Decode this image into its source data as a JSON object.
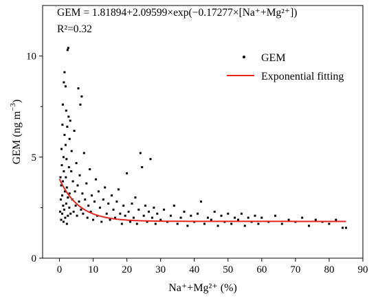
{
  "chart_data": {
    "type": "scatter",
    "xlabel": "Na⁺+Mg²⁺ (%)",
    "ylabel_main": "GEM (ng m",
    "ylabel_exp": "−3",
    "ylabel_close": ")",
    "xlim": [
      -5,
      90
    ],
    "ylim": [
      0,
      12.5
    ],
    "x_ticks": [
      0,
      10,
      20,
      30,
      40,
      50,
      60,
      70,
      80,
      90
    ],
    "y_ticks": [
      0,
      5,
      10
    ],
    "x_tick_labels": [
      "0",
      "10",
      "20",
      "30",
      "40",
      "50",
      "60",
      "70",
      "80",
      "90"
    ],
    "y_tick_labels": [
      "0",
      "5",
      "10"
    ],
    "grid": false,
    "legend_position": "top-right",
    "equation": "GEM = 1.81894+2.09599×exp(−0.17277×[Na⁺+Mg²⁺])",
    "r_squared": "R²=0.32",
    "series": [
      {
        "name": "GEM",
        "kind": "scatter",
        "color": "#000000",
        "points": [
          [
            0.2,
            2.3
          ],
          [
            0.3,
            4.0
          ],
          [
            0.4,
            2.9
          ],
          [
            0.5,
            3.6
          ],
          [
            0.5,
            1.9
          ],
          [
            0.6,
            5.4
          ],
          [
            0.7,
            4.6
          ],
          [
            0.8,
            3.1
          ],
          [
            0.8,
            2.2
          ],
          [
            0.9,
            6.6
          ],
          [
            1.0,
            7.6
          ],
          [
            1.0,
            3.8
          ],
          [
            1.1,
            2.6
          ],
          [
            1.2,
            5.0
          ],
          [
            1.2,
            1.8
          ],
          [
            1.3,
            8.7
          ],
          [
            1.3,
            4.3
          ],
          [
            1.4,
            2.4
          ],
          [
            1.5,
            9.2
          ],
          [
            1.5,
            6.1
          ],
          [
            1.6,
            3.3
          ],
          [
            1.7,
            2.0
          ],
          [
            1.8,
            8.5
          ],
          [
            1.8,
            5.6
          ],
          [
            1.9,
            4.0
          ],
          [
            2.0,
            7.3
          ],
          [
            2.0,
            2.7
          ],
          [
            2.1,
            4.9
          ],
          [
            2.2,
            3.5
          ],
          [
            2.2,
            1.7
          ],
          [
            2.3,
            6.5
          ],
          [
            2.4,
            10.3
          ],
          [
            2.5,
            3.0
          ],
          [
            2.5,
            2.1
          ],
          [
            2.6,
            10.4
          ],
          [
            2.7,
            7.0
          ],
          [
            2.8,
            4.5
          ],
          [
            2.9,
            2.5
          ],
          [
            3.0,
            5.9
          ],
          [
            3.0,
            3.2
          ],
          [
            3.2,
            6.8
          ],
          [
            3.3,
            2.2
          ],
          [
            3.5,
            4.3
          ],
          [
            3.6,
            5.3
          ],
          [
            3.8,
            2.9
          ],
          [
            4.0,
            3.8
          ],
          [
            4.2,
            2.3
          ],
          [
            4.4,
            6.3
          ],
          [
            4.6,
            3.3
          ],
          [
            4.8,
            2.6
          ],
          [
            5.0,
            4.7
          ],
          [
            5.2,
            2.1
          ],
          [
            5.4,
            3.6
          ],
          [
            5.6,
            8.4
          ],
          [
            5.8,
            2.8
          ],
          [
            6.0,
            4.1
          ],
          [
            6.2,
            7.6
          ],
          [
            6.4,
            2.4
          ],
          [
            6.6,
            8.0
          ],
          [
            6.8,
            3.2
          ],
          [
            7.0,
            2.2
          ],
          [
            7.3,
            5.2
          ],
          [
            7.6,
            2.9
          ],
          [
            8.0,
            3.7
          ],
          [
            8.3,
            2.0
          ],
          [
            8.6,
            2.6
          ],
          [
            9.0,
            4.4
          ],
          [
            9.3,
            2.3
          ],
          [
            9.6,
            3.1
          ],
          [
            10.0,
            1.9
          ],
          [
            10.4,
            2.8
          ],
          [
            10.8,
            3.9
          ],
          [
            11.2,
            2.1
          ],
          [
            11.6,
            3.3
          ],
          [
            12.0,
            2.5
          ],
          [
            12.5,
            1.8
          ],
          [
            13.0,
            2.9
          ],
          [
            13.5,
            3.5
          ],
          [
            14.0,
            2.2
          ],
          [
            14.5,
            2.7
          ],
          [
            15.0,
            1.9
          ],
          [
            15.5,
            3.1
          ],
          [
            16.0,
            2.4
          ],
          [
            16.5,
            2.0
          ],
          [
            17.0,
            2.8
          ],
          [
            17.5,
            3.4
          ],
          [
            18.0,
            2.2
          ],
          [
            18.5,
            1.7
          ],
          [
            19.0,
            2.6
          ],
          [
            19.5,
            2.1
          ],
          [
            20.0,
            4.2
          ],
          [
            20.5,
            2.3
          ],
          [
            21.0,
            1.8
          ],
          [
            21.5,
            2.7
          ],
          [
            22.0,
            2.0
          ],
          [
            22.5,
            3.0
          ],
          [
            23.0,
            1.7
          ],
          [
            23.5,
            2.4
          ],
          [
            24.0,
            5.2
          ],
          [
            24.5,
            4.5
          ],
          [
            25.0,
            2.1
          ],
          [
            25.5,
            2.6
          ],
          [
            26.0,
            1.8
          ],
          [
            26.5,
            2.3
          ],
          [
            27.0,
            4.9
          ],
          [
            27.5,
            2.0
          ],
          [
            28.0,
            2.5
          ],
          [
            28.5,
            1.7
          ],
          [
            29.0,
            2.2
          ],
          [
            30.0,
            1.9
          ],
          [
            31.0,
            2.4
          ],
          [
            32.0,
            1.8
          ],
          [
            33.0,
            2.1
          ],
          [
            34.0,
            2.6
          ],
          [
            35.0,
            1.7
          ],
          [
            36.0,
            2.0
          ],
          [
            37.0,
            2.3
          ],
          [
            38.0,
            1.6
          ],
          [
            39.0,
            2.1
          ],
          [
            40.0,
            1.8
          ],
          [
            41.0,
            2.2
          ],
          [
            42.0,
            2.8
          ],
          [
            43.0,
            1.7
          ],
          [
            44.0,
            2.0
          ],
          [
            45.0,
            1.9
          ],
          [
            46.0,
            2.3
          ],
          [
            47.0,
            1.6
          ],
          [
            48.0,
            2.1
          ],
          [
            49.0,
            1.8
          ],
          [
            50.0,
            2.2
          ],
          [
            51.0,
            1.7
          ],
          [
            52.0,
            2.0
          ],
          [
            53.0,
            1.9
          ],
          [
            54.0,
            2.2
          ],
          [
            55.0,
            1.6
          ],
          [
            56.0,
            2.0
          ],
          [
            57.0,
            1.8
          ],
          [
            58.0,
            2.1
          ],
          [
            59.0,
            1.7
          ],
          [
            60.0,
            2.0
          ],
          [
            62.0,
            1.8
          ],
          [
            64.0,
            2.1
          ],
          [
            66.0,
            1.7
          ],
          [
            68.0,
            1.9
          ],
          [
            70.0,
            1.8
          ],
          [
            72.0,
            2.0
          ],
          [
            74.0,
            1.6
          ],
          [
            76.0,
            1.9
          ],
          [
            78.0,
            1.8
          ],
          [
            80.0,
            1.7
          ],
          [
            82.0,
            1.9
          ],
          [
            84.0,
            1.5
          ],
          [
            85.0,
            1.5
          ]
        ]
      },
      {
        "name": "Exponential fitting",
        "kind": "line",
        "color": "#e8231f",
        "model": {
          "a": 1.81894,
          "b": 2.09599,
          "c": -0.17277
        },
        "x_range": [
          0,
          85
        ]
      }
    ]
  }
}
